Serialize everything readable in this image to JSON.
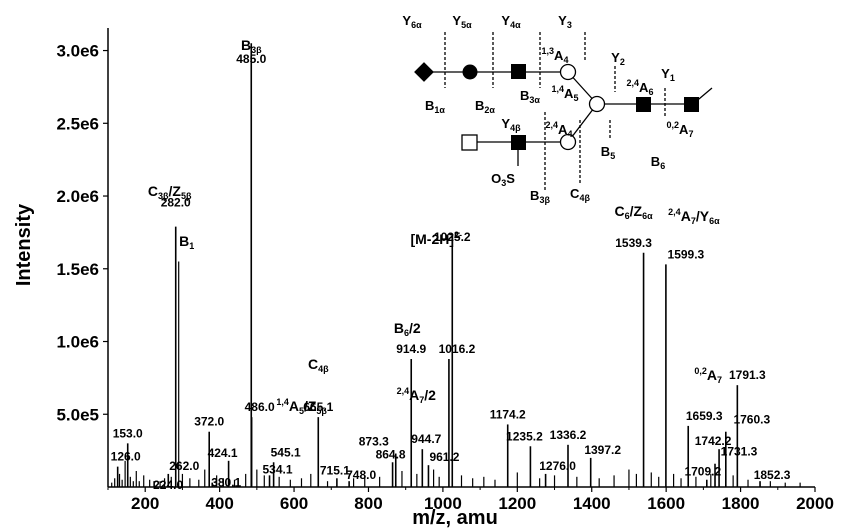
{
  "chart_data": {
    "type": "bar",
    "xlabel": "m/z, amu",
    "ylabel": "Intensity",
    "xlim": [
      100,
      2000
    ],
    "ylim": [
      0,
      3100000
    ],
    "x_ticks": [
      {
        "value": 200,
        "label": "200"
      },
      {
        "value": 400,
        "label": "400"
      },
      {
        "value": 600,
        "label": "600"
      },
      {
        "value": 800,
        "label": "800"
      },
      {
        "value": 1000,
        "label": "1000"
      },
      {
        "value": 1200,
        "label": "1200"
      },
      {
        "value": 1400,
        "label": "1400"
      },
      {
        "value": 1600,
        "label": "1600"
      },
      {
        "value": 1800,
        "label": "1800"
      },
      {
        "value": 2000,
        "label": "2000"
      }
    ],
    "y_ticks": [
      {
        "value": 500000,
        "label": "5.0e5"
      },
      {
        "value": 1000000,
        "label": "1.0e6"
      },
      {
        "value": 1500000,
        "label": "1.5e6"
      },
      {
        "value": 2000000,
        "label": "2.0e6"
      },
      {
        "value": 2500000,
        "label": "2.5e6"
      },
      {
        "value": 3000000,
        "label": "3.0e6"
      }
    ],
    "labeled_peaks": [
      {
        "mz": 153.0,
        "intensity": 300000,
        "label": "153.0"
      },
      {
        "mz": 126.0,
        "intensity": 140000,
        "label": "126.0"
      },
      {
        "mz": 224.0,
        "intensity": 40000,
        "label": "224.0"
      },
      {
        "mz": 262.0,
        "intensity": 90000,
        "label": "262.0"
      },
      {
        "mz": 282.0,
        "intensity": 1790000,
        "label": "282.0"
      },
      {
        "mz": 372.0,
        "intensity": 380000,
        "label": "372.0"
      },
      {
        "mz": 380.1,
        "intensity": 30000,
        "label": "380.1"
      },
      {
        "mz": 424.1,
        "intensity": 180000,
        "label": "424.1"
      },
      {
        "mz": 485.0,
        "intensity": 3050000,
        "label": "485.0"
      },
      {
        "mz": 486.0,
        "intensity": 480000,
        "label": "486.0"
      },
      {
        "mz": 534.1,
        "intensity": 80000,
        "label": "534.1"
      },
      {
        "mz": 545.1,
        "intensity": 170000,
        "label": "545.1"
      },
      {
        "mz": 665.1,
        "intensity": 480000,
        "label": "665.1"
      },
      {
        "mz": 715.1,
        "intensity": 60000,
        "label": "715.1"
      },
      {
        "mz": 748.0,
        "intensity": 40000,
        "label": "748.0"
      },
      {
        "mz": 864.8,
        "intensity": 170000,
        "label": "864.8"
      },
      {
        "mz": 873.3,
        "intensity": 230000,
        "label": "873.3"
      },
      {
        "mz": 914.9,
        "intensity": 880000,
        "label": "914.9"
      },
      {
        "mz": 944.7,
        "intensity": 260000,
        "label": "944.7"
      },
      {
        "mz": 961.2,
        "intensity": 150000,
        "label": "961.2"
      },
      {
        "mz": 1016.2,
        "intensity": 880000,
        "label": "1016.2"
      },
      {
        "mz": 1025.2,
        "intensity": 1650000,
        "label": "1025.2"
      },
      {
        "mz": 1174.2,
        "intensity": 430000,
        "label": "1174.2"
      },
      {
        "mz": 1235.2,
        "intensity": 280000,
        "label": "1235.2"
      },
      {
        "mz": 1276.0,
        "intensity": 90000,
        "label": "1276.0"
      },
      {
        "mz": 1336.2,
        "intensity": 290000,
        "label": "1336.2"
      },
      {
        "mz": 1397.2,
        "intensity": 200000,
        "label": "1397.2"
      },
      {
        "mz": 1539.3,
        "intensity": 1610000,
        "label": "1539.3"
      },
      {
        "mz": 1599.3,
        "intensity": 1530000,
        "label": "1599.3"
      },
      {
        "mz": 1659.3,
        "intensity": 420000,
        "label": "1659.3"
      },
      {
        "mz": 1709.2,
        "intensity": 50000,
        "label": "1709.2"
      },
      {
        "mz": 1731.3,
        "intensity": 160000,
        "label": "1731.3"
      },
      {
        "mz": 1742.2,
        "intensity": 260000,
        "label": "1742.2"
      },
      {
        "mz": 1760.3,
        "intensity": 380000,
        "label": "1760.3"
      },
      {
        "mz": 1791.3,
        "intensity": 700000,
        "label": "1791.3"
      },
      {
        "mz": 1852.3,
        "intensity": 40000,
        "label": "1852.3"
      }
    ],
    "minor_peaks": [
      {
        "mz": 110,
        "intensity": 30000
      },
      {
        "mz": 118,
        "intensity": 60000
      },
      {
        "mz": 131,
        "intensity": 90000
      },
      {
        "mz": 138,
        "intensity": 50000
      },
      {
        "mz": 146,
        "intensity": 180000
      },
      {
        "mz": 160,
        "intensity": 70000
      },
      {
        "mz": 168,
        "intensity": 40000
      },
      {
        "mz": 176,
        "intensity": 110000
      },
      {
        "mz": 184,
        "intensity": 40000
      },
      {
        "mz": 196,
        "intensity": 80000
      },
      {
        "mz": 212,
        "intensity": 50000
      },
      {
        "mz": 240,
        "intensity": 40000
      },
      {
        "mz": 252,
        "intensity": 60000
      },
      {
        "mz": 270,
        "intensity": 70000
      },
      {
        "mz": 290,
        "intensity": 1550000
      },
      {
        "mz": 300,
        "intensity": 90000
      },
      {
        "mz": 320,
        "intensity": 60000
      },
      {
        "mz": 344,
        "intensity": 50000
      },
      {
        "mz": 360,
        "intensity": 120000
      },
      {
        "mz": 392,
        "intensity": 80000
      },
      {
        "mz": 410,
        "intensity": 60000
      },
      {
        "mz": 440,
        "intensity": 50000
      },
      {
        "mz": 470,
        "intensity": 90000
      },
      {
        "mz": 500,
        "intensity": 120000
      },
      {
        "mz": 520,
        "intensity": 80000
      },
      {
        "mz": 560,
        "intensity": 70000
      },
      {
        "mz": 590,
        "intensity": 50000
      },
      {
        "mz": 620,
        "intensity": 60000
      },
      {
        "mz": 645,
        "intensity": 90000
      },
      {
        "mz": 690,
        "intensity": 40000
      },
      {
        "mz": 760,
        "intensity": 60000
      },
      {
        "mz": 790,
        "intensity": 80000
      },
      {
        "mz": 830,
        "intensity": 70000
      },
      {
        "mz": 890,
        "intensity": 110000
      },
      {
        "mz": 930,
        "intensity": 90000
      },
      {
        "mz": 975,
        "intensity": 120000
      },
      {
        "mz": 990,
        "intensity": 70000
      },
      {
        "mz": 1050,
        "intensity": 80000
      },
      {
        "mz": 1080,
        "intensity": 60000
      },
      {
        "mz": 1110,
        "intensity": 70000
      },
      {
        "mz": 1140,
        "intensity": 50000
      },
      {
        "mz": 1200,
        "intensity": 100000
      },
      {
        "mz": 1260,
        "intensity": 60000
      },
      {
        "mz": 1300,
        "intensity": 80000
      },
      {
        "mz": 1360,
        "intensity": 70000
      },
      {
        "mz": 1420,
        "intensity": 60000
      },
      {
        "mz": 1460,
        "intensity": 80000
      },
      {
        "mz": 1500,
        "intensity": 120000
      },
      {
        "mz": 1520,
        "intensity": 90000
      },
      {
        "mz": 1560,
        "intensity": 100000
      },
      {
        "mz": 1580,
        "intensity": 70000
      },
      {
        "mz": 1620,
        "intensity": 90000
      },
      {
        "mz": 1640,
        "intensity": 60000
      },
      {
        "mz": 1680,
        "intensity": 70000
      },
      {
        "mz": 1720,
        "intensity": 90000
      },
      {
        "mz": 1780,
        "intensity": 80000
      },
      {
        "mz": 1820,
        "intensity": 50000
      },
      {
        "mz": 1880,
        "intensity": 40000
      },
      {
        "mz": 1920,
        "intensity": 30000
      },
      {
        "mz": 1960,
        "intensity": 30000
      }
    ],
    "ion_annotations": [
      {
        "mz": 485.0,
        "intensity": 3050000,
        "base": "B",
        "sub": "3β",
        "value_label": "485.0"
      },
      {
        "mz": 282.0,
        "intensity": 1790000,
        "base": "C",
        "sub": "3β",
        "rest": "/Z",
        "sub2": "5β",
        "value_label": "282.0"
      },
      {
        "mz": 290,
        "intensity": 1550000,
        "base": "B",
        "sub": "1"
      },
      {
        "mz": 1025.2,
        "intensity": 1650000,
        "text": "[M-2H]",
        "sup": "2-"
      },
      {
        "mz": 1539.3,
        "intensity": 1610000,
        "base": "C",
        "sub": "6",
        "rest": "/Z",
        "sub2": "6α"
      },
      {
        "mz": 1599.3,
        "intensity": 1530000,
        "pre_sup": "2,4",
        "base": "A",
        "sub": "7",
        "rest": "/Y",
        "sub2": "6α"
      },
      {
        "mz": 914.9,
        "intensity": 880000,
        "base": "B",
        "sub": "6",
        "rest": "/2"
      },
      {
        "mz": 665.1,
        "intensity": 480000,
        "base": "C",
        "sub": "4β"
      },
      {
        "mz": 486.0,
        "intensity": 480000,
        "pre_sup": "1,4",
        "base": "A",
        "sub": "5",
        "rest": "/Z",
        "sub2": "5β"
      },
      {
        "mz": 944.7,
        "intensity": 260000,
        "pre_sup": "2,4",
        "base": "A",
        "sub": "7",
        "rest": "/2"
      },
      {
        "mz": 1659.3,
        "intensity": 420000,
        "pre_sup": "0,2",
        "base": "A",
        "sub": "7"
      }
    ],
    "structure": {
      "fragment_labels": [
        {
          "base": "Y",
          "sub": "6α"
        },
        {
          "base": "Y",
          "sub": "5α"
        },
        {
          "base": "Y",
          "sub": "4α"
        },
        {
          "base": "Y",
          "sub": "3"
        },
        {
          "base": "Y",
          "sub": "2"
        },
        {
          "base": "Y",
          "sub": "1"
        },
        {
          "base": "Y",
          "sub": "4β"
        },
        {
          "base": "B",
          "sub": "1α"
        },
        {
          "base": "B",
          "sub": "2α"
        },
        {
          "base": "B",
          "sub": "3α"
        },
        {
          "base": "B",
          "sub": "5"
        },
        {
          "base": "B",
          "sub": "6"
        },
        {
          "base": "B",
          "sub": "3β"
        },
        {
          "base": "C",
          "sub": "4β"
        },
        {
          "pre_sup": "1,3",
          "base": "A",
          "sub": "4"
        },
        {
          "pre_sup": "1,4",
          "base": "A",
          "sub": "5"
        },
        {
          "pre_sup": "2,4",
          "base": "A",
          "sub": "6"
        },
        {
          "pre_sup": "2,4",
          "base": "A",
          "sub": "4"
        },
        {
          "pre_sup": "0,2",
          "base": "A",
          "sub": "7"
        }
      ],
      "sulfate_label": "O",
      "sulfate_sub": "3",
      "sulfate_rest": "S"
    }
  }
}
